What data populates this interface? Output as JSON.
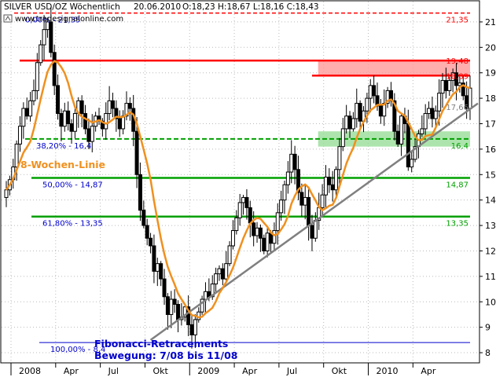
{
  "header": {
    "title": "SILVER USD/OZ Wöchentlich",
    "date": "20.06.2010",
    "ohlc": "O:18,23 H:18,67 L:18,16 C:18,43",
    "watermark": "www.tradesignalonline.com"
  },
  "annotations": {
    "ma_label": "8-Wochen-Linie",
    "fib_title": "Fibonacci-Retracements",
    "fib_move": "Bewegung: 7/08 bis 11/08"
  },
  "colors": {
    "candles": "#000000",
    "ma": "#f0901e",
    "trendline": "#808080",
    "fib_line": "#0000cc",
    "fib_text": "#0000cc",
    "support_line": "#00a000",
    "resistance_line": "#ff0000",
    "ma_label": "#f0901e",
    "fib_title": "#0000cc"
  },
  "chart_data": {
    "type": "candlestick",
    "y_axis": {
      "min": 7.6,
      "max": 21.8,
      "ticks": [
        8,
        9,
        10,
        11,
        12,
        13,
        14,
        15,
        16,
        17,
        18,
        19,
        20,
        21
      ],
      "position": "right"
    },
    "x_axis": {
      "ticks": [
        "2008",
        "Apr",
        "Jul",
        "Okt",
        "2009",
        "Apr",
        "Jul",
        "Okt",
        "2010",
        "Apr"
      ]
    },
    "grid": "dotted",
    "fib_levels": [
      {
        "label": "0,00% - 21,35",
        "value": 21.35,
        "right_label": "21,35",
        "style": "dashed"
      },
      {
        "label": "38,20% - 16,4",
        "value": 16.4,
        "right_label": "16,4",
        "style": "dashed"
      },
      {
        "label": "50,00% - 14,87",
        "value": 14.87,
        "right_label": "14,87",
        "style": "solid"
      },
      {
        "label": "61,80% - 13,35",
        "value": 13.35,
        "right_label": "13,35",
        "style": "solid"
      },
      {
        "label": "100,00% - 8,4",
        "value": 8.4,
        "right_label": "",
        "style": "solid"
      }
    ],
    "resistance_levels": [
      {
        "value": 19.48,
        "label": "19,48"
      },
      {
        "value": 18.89,
        "label": "18,89"
      }
    ],
    "price_labels": [
      {
        "value": 17.66,
        "label": "17,66"
      }
    ],
    "zones": [
      {
        "y1": 18.89,
        "y2": 19.48,
        "from": "2009-10",
        "color": "#ff9999"
      },
      {
        "y1": 16.1,
        "y2": 16.7,
        "from": "2009-10",
        "color": "#99dd99"
      }
    ],
    "trendline": {
      "from": {
        "x": "2008-10-24",
        "y": 8.5
      },
      "to": {
        "x": "2010-06-25",
        "y": 17.8
      }
    },
    "weekly_closes": [
      14.4,
      14.8,
      15.3,
      16.2,
      16.9,
      17.6,
      17.3,
      17.9,
      18.3,
      19.4,
      20.1,
      20.7,
      21.0,
      19.8,
      18.5,
      17.4,
      16.9,
      17.5,
      17.0,
      16.7,
      17.4,
      17.9,
      17.4,
      16.8,
      16.3,
      16.9,
      17.3,
      17.1,
      16.8,
      17.4,
      17.9,
      17.6,
      17.2,
      16.8,
      17.3,
      17.8,
      17.6,
      16.7,
      15.0,
      13.6,
      13.0,
      12.5,
      12.2,
      11.2,
      11.5,
      10.9,
      10.2,
      9.5,
      10.1,
      9.9,
      9.3,
      9.4,
      9.8,
      9.1,
      8.7,
      9.3,
      9.6,
      10.1,
      10.4,
      10.2,
      10.7,
      11.1,
      11.3,
      10.9,
      11.5,
      12.2,
      12.8,
      13.3,
      13.9,
      14.1,
      13.7,
      13.1,
      12.6,
      12.9,
      12.5,
      12.0,
      12.7,
      12.3,
      12.8,
      13.5,
      14.0,
      14.6,
      15.1,
      15.8,
      15.2,
      14.3,
      13.8,
      14.1,
      13.0,
      12.5,
      13.2,
      13.7,
      14.2,
      14.9,
      14.6,
      14.4,
      15.2,
      16.1,
      16.8,
      17.3,
      16.8,
      17.2,
      17.8,
      17.1,
      17.5,
      18.0,
      18.5,
      18.1,
      17.7,
      17.3,
      17.8,
      18.3,
      17.9,
      16.7,
      16.2,
      17.3,
      17.0,
      15.3,
      15.6,
      16.1,
      16.6,
      16.8,
      17.4,
      17.6,
      17.2,
      17.5,
      18.2,
      18.7,
      18.3,
      18.7,
      19.0,
      18.5,
      18.6,
      18.1,
      17.6,
      18.4
    ]
  }
}
